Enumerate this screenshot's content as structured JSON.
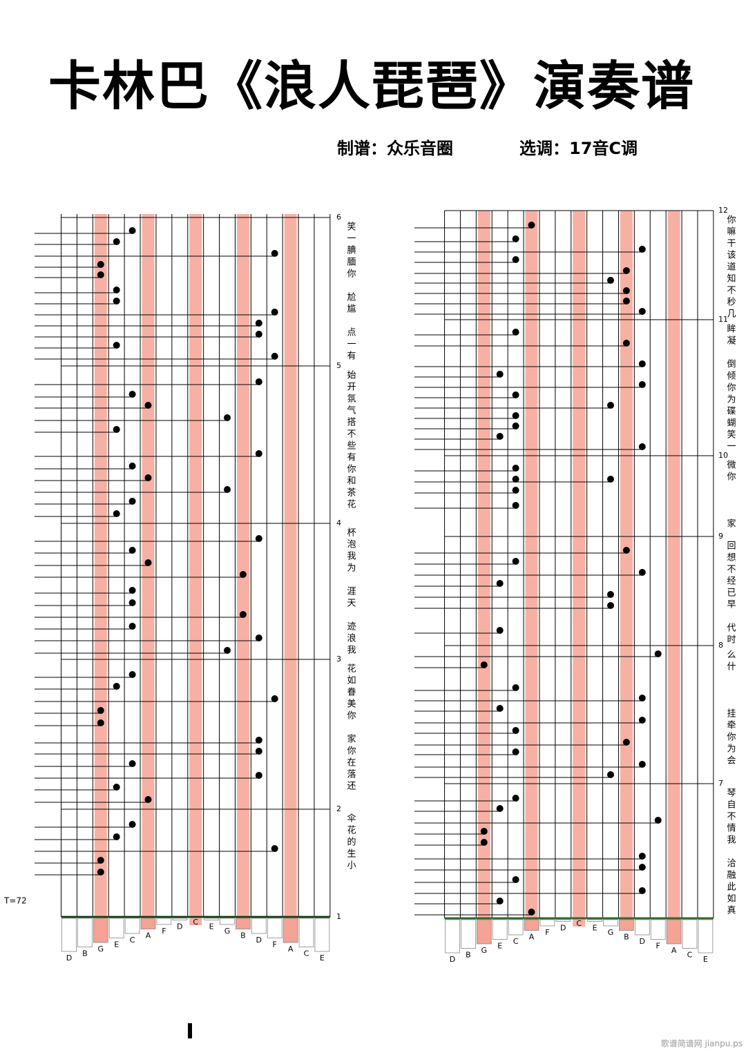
{
  "header": {
    "title": "卡林巴《浪人琵琶》演奏谱",
    "arranger": "制谱：众乐音圈",
    "key": "选调：17音C调"
  },
  "tempo": "T=72",
  "panels": [
    {
      "keys": [
        "D",
        "B",
        "G",
        "E",
        "C",
        "A",
        "F",
        "D",
        "C",
        "E",
        "G",
        "B",
        "D",
        "F",
        "A",
        "C",
        "E"
      ],
      "measures": [
        {
          "number": 6,
          "lyrics": "笑一腆腼你　尬尴　点一有"
        },
        {
          "number": 5,
          "lyrics": "始开氛气搭不些有你和茶花"
        },
        {
          "number": 4,
          "lyrics": "杯泡我为　涯天　迹浪我"
        },
        {
          "number": 3,
          "lyrics": "花如眷美你　家你在落还"
        },
        {
          "number": 2,
          "lyrics": "伞花的生小"
        },
        {
          "number": 1
        }
      ]
    },
    {
      "keys": [
        "D",
        "B",
        "G",
        "E",
        "C",
        "A",
        "F",
        "D",
        "C",
        "E",
        "G",
        "B",
        "D",
        "F",
        "A",
        "C",
        "E"
      ],
      "measures": [
        {
          "number": 12,
          "lyrics": "你嘛干该道知不秒几"
        },
        {
          "number": 11,
          "lyrics": "眸凝　倒倾你为碟蝴笑一"
        },
        {
          "number": 10,
          "lyrics": "微你　　　家"
        },
        {
          "number": 9,
          "lyrics": "回想不经已早　代时"
        },
        {
          "number": 8,
          "lyrics": "么什　　　挂牵你为会"
        },
        {
          "number": 7,
          "lyrics": "琴自不情我　洽融此如真"
        }
      ]
    }
  ],
  "watermark": "歌谱简谱网 jianpu.ps"
}
